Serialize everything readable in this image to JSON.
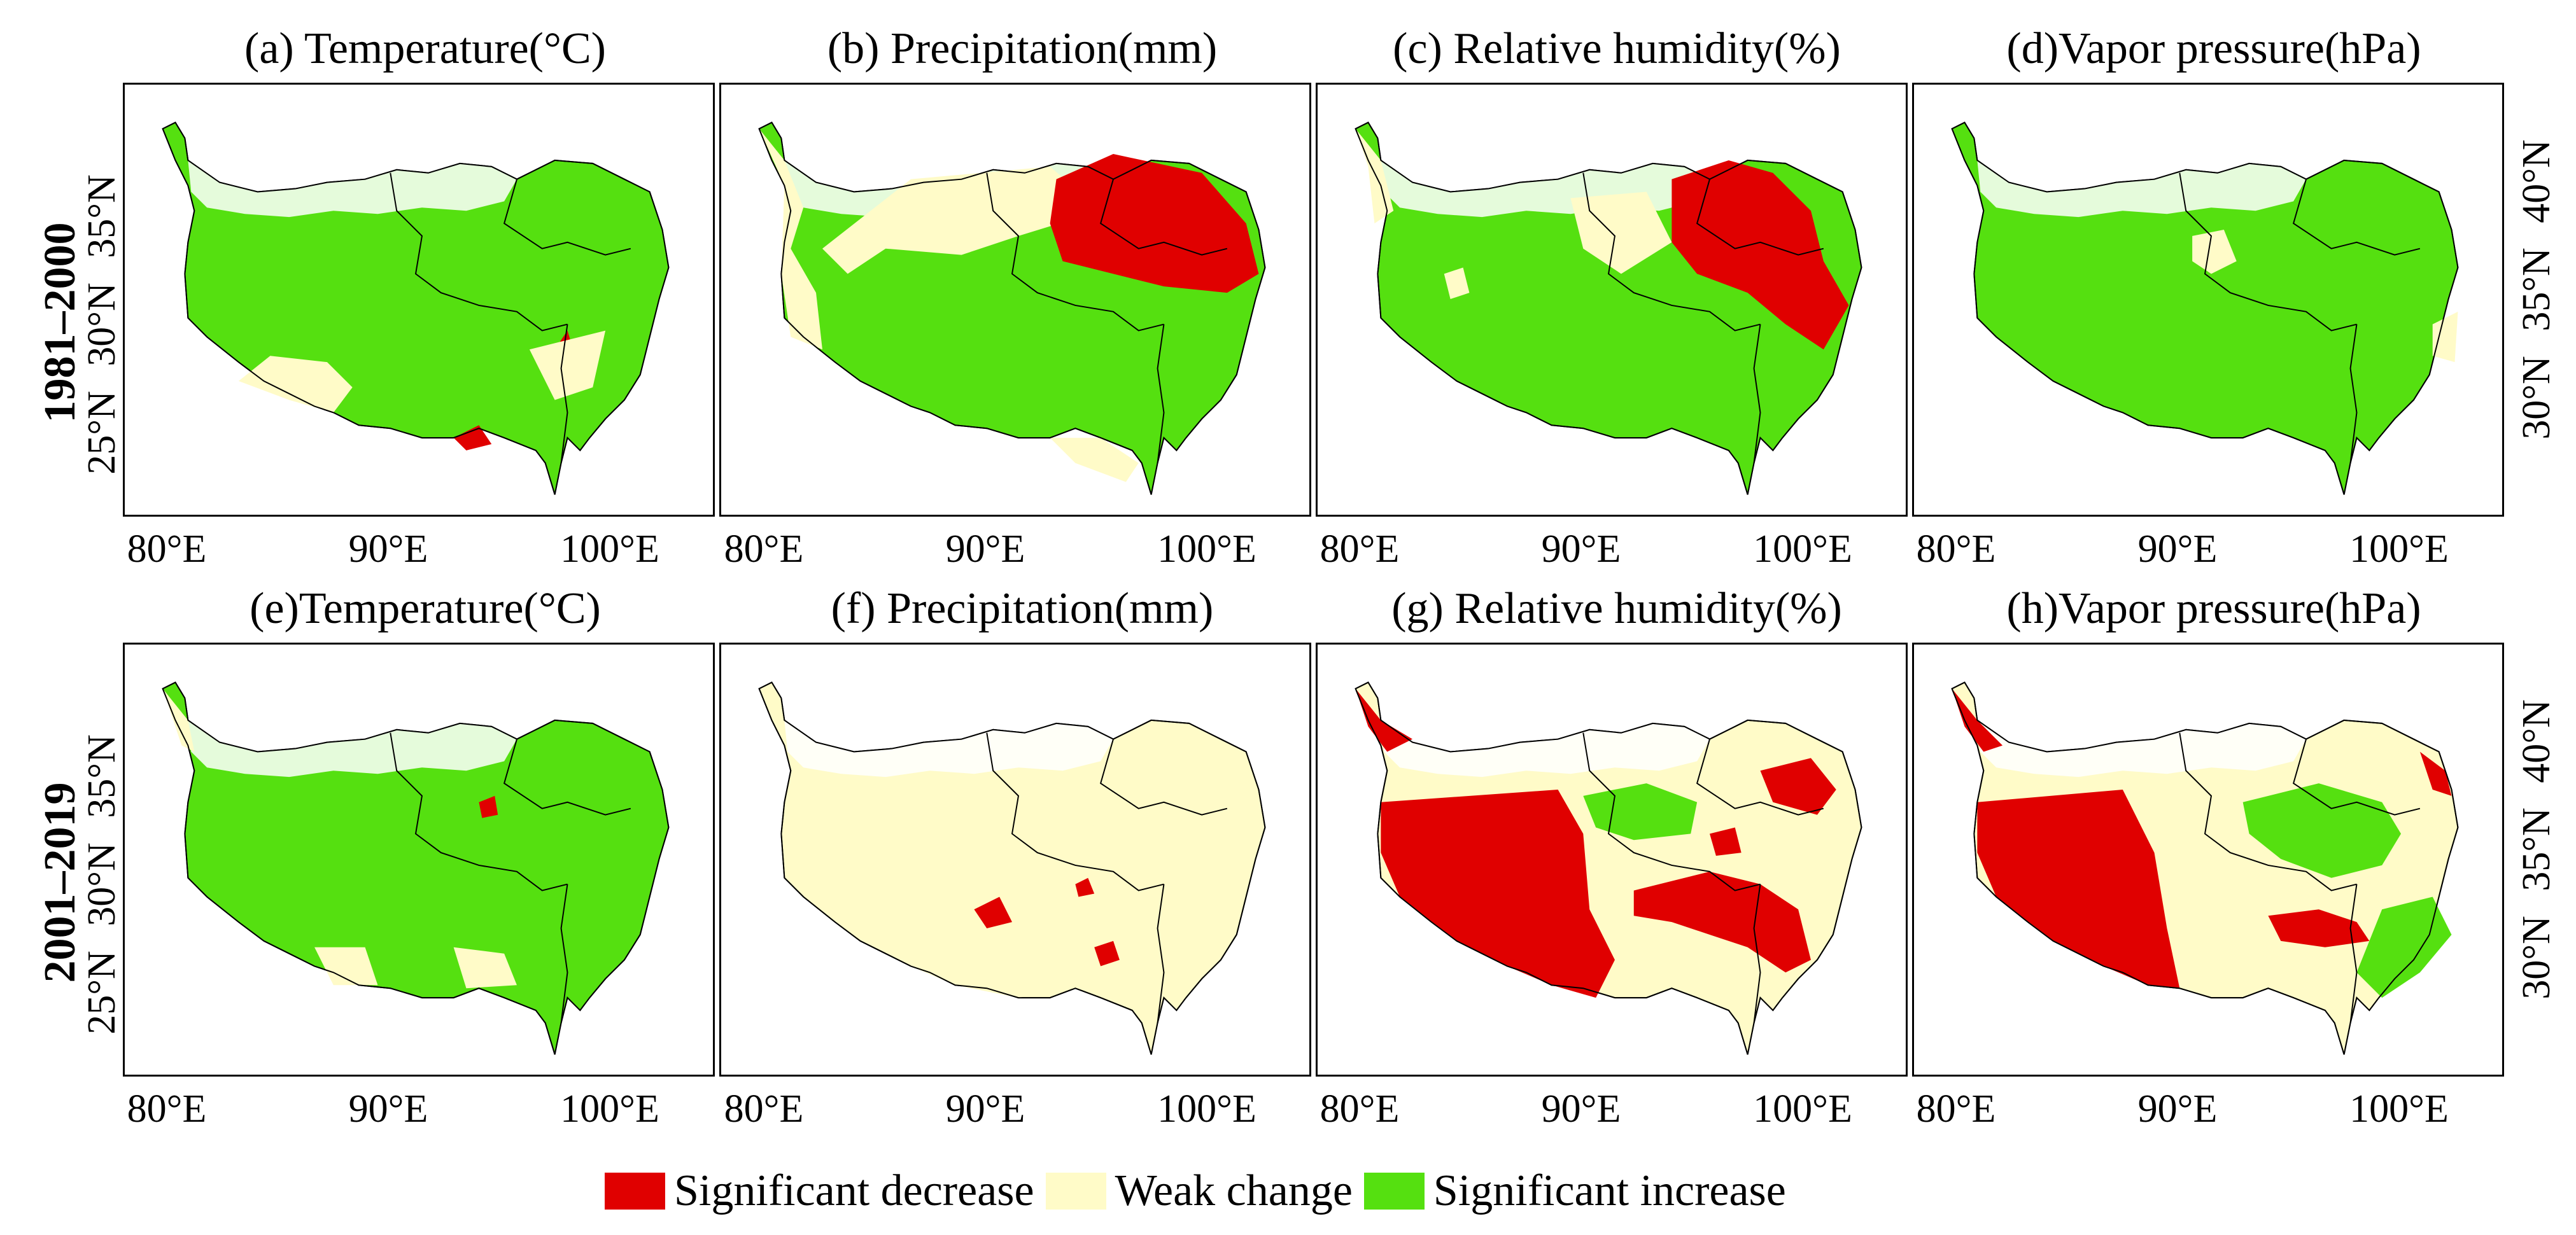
{
  "colors": {
    "decrease": "#e00000",
    "weak": "#fffbc8",
    "increase": "#55e010",
    "white": "#ffffff",
    "outline": "#000000"
  },
  "rows": [
    {
      "label": "1981–2000"
    },
    {
      "label": "2001–2019"
    }
  ],
  "panels": [
    {
      "title": "(a) Temperature(°C)",
      "dominant": "increase"
    },
    {
      "title": "(b) Precipitation(mm)",
      "dominant": "increase"
    },
    {
      "title": "(c) Relative humidity(%)",
      "dominant": "increase"
    },
    {
      "title": "(d)Vapor pressure(hPa)",
      "dominant": "increase"
    },
    {
      "title": "(e)Temperature(°C)",
      "dominant": "increase"
    },
    {
      "title": "(f) Precipitation(mm)",
      "dominant": "weak"
    },
    {
      "title": "(g) Relative humidity(%)",
      "dominant": "weak"
    },
    {
      "title": "(h)Vapor pressure(hPa)",
      "dominant": "weak"
    }
  ],
  "axes": {
    "x_ticks": [
      "80°E",
      "90°E",
      "100°E"
    ],
    "y_ticks_left": [
      "35°N",
      "30°N",
      "25°N"
    ],
    "y_ticks_right": [
      "40°N",
      "35°N",
      "30°N"
    ]
  },
  "legend": [
    {
      "label": "Significant decrease",
      "color": "#e00000"
    },
    {
      "label": "Weak change",
      "color": "#fffbc8"
    },
    {
      "label": "Significant increase",
      "color": "#55e010"
    }
  ]
}
